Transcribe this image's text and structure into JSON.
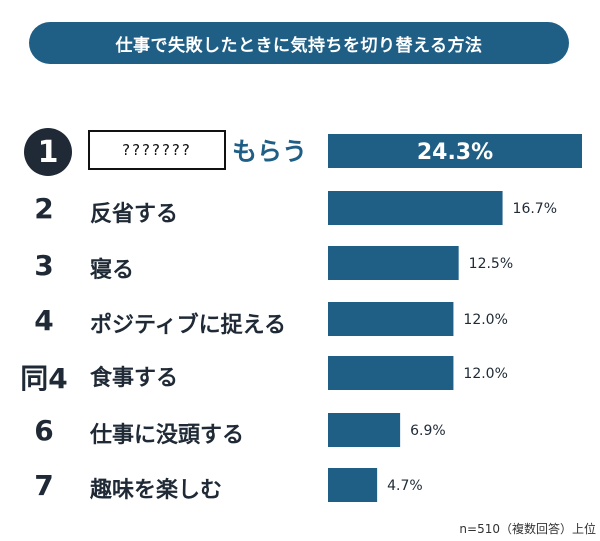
{
  "chart_data": {
    "type": "bar",
    "orientation": "horizontal",
    "title": "仕事で失敗したときに気持ちを切り替える方法",
    "ranks": [
      "1",
      "2",
      "3",
      "4",
      "同4",
      "6",
      "7"
    ],
    "categories": [
      "???????もらう",
      "反省する",
      "寝る",
      "ポジティブに捉える",
      "食事する",
      "仕事に没頭する",
      "趣味を楽しむ"
    ],
    "values": [
      24.3,
      16.7,
      12.5,
      12.0,
      12.0,
      6.9,
      4.7
    ],
    "value_labels": [
      "24.3%",
      "16.7%",
      "12.5%",
      "12.0%",
      "12.0%",
      "6.9%",
      "4.7%"
    ],
    "xlim": [
      0,
      24.3
    ],
    "bar_color": "#1f5f86",
    "footnote": "n=510（複数回答）上位"
  },
  "first_item": {
    "masked_text": "???????",
    "suffix": "もらう"
  }
}
